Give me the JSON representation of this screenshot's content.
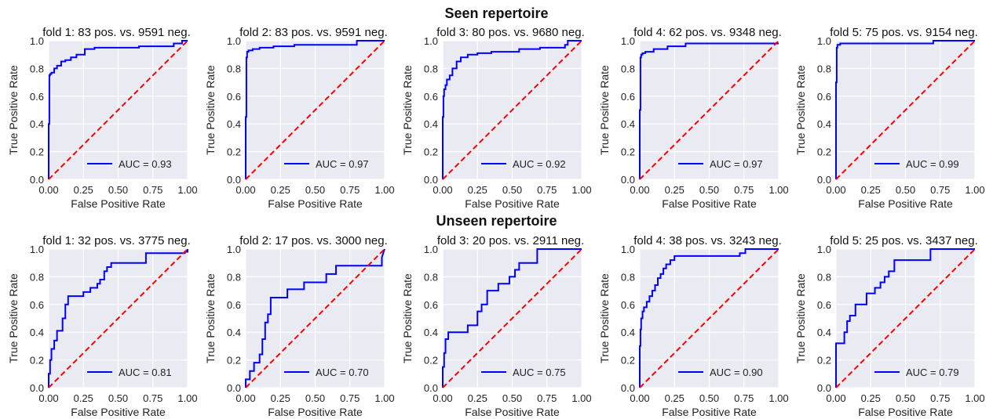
{
  "row_titles": [
    "Seen repertoire",
    "Unseen repertoire"
  ],
  "colors": {
    "roc": "#0000ff",
    "diagonal": "#ff0000",
    "panel_bg": "#eaeaf2",
    "grid": "#ffffff"
  },
  "chart_data": [
    {
      "type": "line",
      "row": 0,
      "title": "fold 1: 83 pos. vs. 9591 neg.",
      "xlabel": "False Positive Rate",
      "ylabel": "True Positive Rate",
      "xlim": [
        0,
        1
      ],
      "ylim": [
        0,
        1
      ],
      "xticks": [
        "0.00",
        "0.25",
        "0.50",
        "0.75",
        "1.00"
      ],
      "yticks": [
        "0.0",
        "0.2",
        "0.4",
        "0.6",
        "0.8",
        "1.0"
      ],
      "grid": true,
      "legend": "lower right",
      "series": [
        {
          "name": "AUC = 0.93",
          "x": [
            0,
            0,
            0.005,
            0.005,
            0.01,
            0.01,
            0.02,
            0.02,
            0.04,
            0.04,
            0.06,
            0.06,
            0.09,
            0.09,
            0.12,
            0.12,
            0.16,
            0.16,
            0.2,
            0.2,
            0.26,
            0.26,
            0.33,
            0.33,
            0.65,
            0.65,
            0.9,
            0.9,
            0.96,
            0.96,
            1
          ],
          "y": [
            0,
            0.4,
            0.4,
            0.75,
            0.75,
            0.76,
            0.76,
            0.77,
            0.77,
            0.8,
            0.8,
            0.82,
            0.82,
            0.85,
            0.85,
            0.86,
            0.86,
            0.88,
            0.88,
            0.9,
            0.9,
            0.94,
            0.94,
            0.95,
            0.95,
            0.96,
            0.96,
            0.98,
            0.98,
            1,
            1
          ]
        },
        {
          "x": [
            0,
            1
          ],
          "y": [
            0,
            1
          ],
          "style": "dashed"
        }
      ]
    },
    {
      "type": "line",
      "row": 0,
      "title": "fold 2: 83 pos. vs. 9591 neg.",
      "xlabel": "False Positive Rate",
      "ylabel": "True Positive Rate",
      "xlim": [
        0,
        1
      ],
      "ylim": [
        0,
        1
      ],
      "xticks": [
        "0.00",
        "0.25",
        "0.50",
        "0.75",
        "1.00"
      ],
      "yticks": [
        "0.0",
        "0.2",
        "0.4",
        "0.6",
        "0.8",
        "1.0"
      ],
      "grid": true,
      "legend": "lower right",
      "series": [
        {
          "name": "AUC = 0.97",
          "x": [
            0,
            0,
            0.005,
            0.005,
            0.01,
            0.01,
            0.02,
            0.02,
            0.05,
            0.05,
            0.1,
            0.1,
            0.2,
            0.2,
            0.35,
            0.35,
            0.8,
            0.8,
            1
          ],
          "y": [
            0,
            0.45,
            0.45,
            0.88,
            0.88,
            0.92,
            0.92,
            0.93,
            0.93,
            0.94,
            0.94,
            0.95,
            0.95,
            0.96,
            0.96,
            0.97,
            0.97,
            1,
            1
          ]
        },
        {
          "x": [
            0,
            1
          ],
          "y": [
            0,
            1
          ],
          "style": "dashed"
        }
      ]
    },
    {
      "type": "line",
      "row": 0,
      "title": "fold 3: 80 pos. vs. 9680 neg.",
      "xlabel": "False Positive Rate",
      "ylabel": "True Positive Rate",
      "xlim": [
        0,
        1
      ],
      "ylim": [
        0,
        1
      ],
      "xticks": [
        "0.00",
        "0.25",
        "0.50",
        "0.75",
        "1.00"
      ],
      "yticks": [
        "0.0",
        "0.2",
        "0.4",
        "0.6",
        "0.8",
        "1.0"
      ],
      "grid": true,
      "legend": "lower right",
      "series": [
        {
          "name": "AUC = 0.92",
          "x": [
            0,
            0,
            0.005,
            0.005,
            0.01,
            0.01,
            0.02,
            0.02,
            0.03,
            0.03,
            0.05,
            0.05,
            0.07,
            0.07,
            0.1,
            0.1,
            0.13,
            0.13,
            0.18,
            0.18,
            0.25,
            0.25,
            0.35,
            0.35,
            0.55,
            0.55,
            0.7,
            0.7,
            0.88,
            0.88,
            0.9,
            0.9,
            1
          ],
          "y": [
            0,
            0.45,
            0.45,
            0.6,
            0.6,
            0.65,
            0.65,
            0.68,
            0.68,
            0.72,
            0.72,
            0.75,
            0.75,
            0.8,
            0.8,
            0.85,
            0.85,
            0.88,
            0.88,
            0.9,
            0.9,
            0.91,
            0.91,
            0.92,
            0.92,
            0.94,
            0.94,
            0.95,
            0.95,
            0.97,
            0.97,
            1,
            1
          ]
        },
        {
          "x": [
            0,
            1
          ],
          "y": [
            0,
            1
          ],
          "style": "dashed"
        }
      ]
    },
    {
      "type": "line",
      "row": 0,
      "title": "fold 4: 62 pos. vs. 9348 neg.",
      "xlabel": "False Positive Rate",
      "ylabel": "True Positive Rate",
      "xlim": [
        0,
        1
      ],
      "ylim": [
        0,
        1
      ],
      "xticks": [
        "0.00",
        "0.25",
        "0.50",
        "0.75",
        "1.00"
      ],
      "yticks": [
        "0.0",
        "0.2",
        "0.4",
        "0.6",
        "0.8",
        "1.0"
      ],
      "grid": true,
      "legend": "lower right",
      "series": [
        {
          "name": "AUC = 0.97",
          "x": [
            0,
            0,
            0.005,
            0.005,
            0.01,
            0.01,
            0.02,
            0.02,
            0.04,
            0.04,
            0.1,
            0.1,
            0.2,
            0.2,
            0.33,
            0.33,
            1
          ],
          "y": [
            0,
            0.5,
            0.5,
            0.88,
            0.88,
            0.9,
            0.9,
            0.91,
            0.91,
            0.92,
            0.92,
            0.94,
            0.94,
            0.96,
            0.96,
            0.98,
            0.98
          ]
        },
        {
          "x": [
            0,
            1
          ],
          "y": [
            0,
            1
          ],
          "style": "dashed"
        }
      ]
    },
    {
      "type": "line",
      "row": 0,
      "title": "fold 5: 75 pos. vs. 9154 neg.",
      "xlabel": "False Positive Rate",
      "ylabel": "True Positive Rate",
      "xlim": [
        0,
        1
      ],
      "ylim": [
        0,
        1
      ],
      "xticks": [
        "0.00",
        "0.25",
        "0.50",
        "0.75",
        "1.00"
      ],
      "yticks": [
        "0.0",
        "0.2",
        "0.4",
        "0.6",
        "0.8",
        "1.0"
      ],
      "grid": true,
      "legend": "lower right",
      "series": [
        {
          "name": "AUC = 0.99",
          "x": [
            0,
            0,
            0.005,
            0.005,
            0.01,
            0.01,
            0.03,
            0.03,
            0.1,
            0.1,
            0.7,
            0.7,
            1
          ],
          "y": [
            0,
            0.7,
            0.7,
            0.95,
            0.95,
            0.97,
            0.97,
            0.98,
            0.98,
            0.98,
            0.98,
            1,
            1
          ]
        },
        {
          "x": [
            0,
            1
          ],
          "y": [
            0,
            1
          ],
          "style": "dashed"
        }
      ]
    },
    {
      "type": "line",
      "row": 1,
      "title": "fold 1: 32 pos. vs. 3775 neg.",
      "xlabel": "False Positive Rate",
      "ylabel": "True Positive Rate",
      "xlim": [
        0,
        1
      ],
      "ylim": [
        0,
        1
      ],
      "xticks": [
        "0.00",
        "0.25",
        "0.50",
        "0.75",
        "1.00"
      ],
      "yticks": [
        "0.0",
        "0.2",
        "0.4",
        "0.6",
        "0.8",
        "1.0"
      ],
      "grid": true,
      "legend": "lower right",
      "series": [
        {
          "name": "AUC = 0.81",
          "x": [
            0,
            0,
            0.01,
            0.01,
            0.02,
            0.02,
            0.04,
            0.04,
            0.06,
            0.06,
            0.1,
            0.1,
            0.12,
            0.12,
            0.14,
            0.14,
            0.2,
            0.2,
            0.25,
            0.25,
            0.3,
            0.3,
            0.35,
            0.35,
            0.37,
            0.37,
            0.4,
            0.4,
            0.42,
            0.42,
            0.45,
            0.45,
            0.5,
            0.5,
            0.7,
            0.7,
            0.98,
            0.98,
            1,
            1
          ],
          "y": [
            0,
            0.1,
            0.1,
            0.2,
            0.2,
            0.28,
            0.28,
            0.34,
            0.34,
            0.41,
            0.41,
            0.5,
            0.5,
            0.6,
            0.6,
            0.66,
            0.66,
            0.66,
            0.66,
            0.69,
            0.69,
            0.72,
            0.72,
            0.75,
            0.75,
            0.78,
            0.78,
            0.84,
            0.84,
            0.87,
            0.87,
            0.9,
            0.9,
            0.9,
            0.9,
            0.97,
            0.97,
            0.98,
            0.98,
            1
          ]
        },
        {
          "x": [
            0,
            1
          ],
          "y": [
            0,
            1
          ],
          "style": "dashed"
        }
      ]
    },
    {
      "type": "line",
      "row": 1,
      "title": "fold 2: 17 pos. vs. 3000 neg.",
      "xlabel": "False Positive Rate",
      "ylabel": "True Positive Rate",
      "xlim": [
        0,
        1
      ],
      "ylim": [
        0,
        1
      ],
      "xticks": [
        "0.00",
        "0.25",
        "0.50",
        "0.75",
        "1.00"
      ],
      "yticks": [
        "0.0",
        "0.2",
        "0.4",
        "0.6",
        "0.8",
        "1.0"
      ],
      "grid": true,
      "legend": "lower right",
      "series": [
        {
          "name": "AUC = 0.70",
          "x": [
            0,
            0,
            0.03,
            0.03,
            0.06,
            0.06,
            0.1,
            0.1,
            0.12,
            0.12,
            0.14,
            0.14,
            0.16,
            0.16,
            0.18,
            0.18,
            0.3,
            0.3,
            0.42,
            0.42,
            0.58,
            0.58,
            0.65,
            0.65,
            0.98,
            0.98,
            1
          ],
          "y": [
            0,
            0.06,
            0.06,
            0.12,
            0.12,
            0.18,
            0.18,
            0.24,
            0.24,
            0.35,
            0.35,
            0.47,
            0.47,
            0.53,
            0.53,
            0.65,
            0.65,
            0.71,
            0.71,
            0.76,
            0.76,
            0.82,
            0.82,
            0.88,
            0.88,
            0.94,
            1
          ]
        },
        {
          "x": [
            0,
            1
          ],
          "y": [
            0,
            1
          ],
          "style": "dashed"
        }
      ]
    },
    {
      "type": "line",
      "row": 1,
      "title": "fold 3: 20 pos. vs. 2911 neg.",
      "xlabel": "False Positive Rate",
      "ylabel": "True Positive Rate",
      "xlim": [
        0,
        1
      ],
      "ylim": [
        0,
        1
      ],
      "xticks": [
        "0.00",
        "0.25",
        "0.50",
        "0.75",
        "1.00"
      ],
      "yticks": [
        "0.0",
        "0.2",
        "0.4",
        "0.6",
        "0.8",
        "1.0"
      ],
      "grid": true,
      "legend": "lower right",
      "series": [
        {
          "name": "AUC = 0.75",
          "x": [
            0,
            0,
            0.01,
            0.01,
            0.02,
            0.02,
            0.04,
            0.04,
            0.06,
            0.06,
            0.18,
            0.18,
            0.25,
            0.25,
            0.28,
            0.28,
            0.32,
            0.32,
            0.4,
            0.4,
            0.48,
            0.48,
            0.52,
            0.52,
            0.55,
            0.55,
            0.68,
            0.68,
            1
          ],
          "y": [
            0,
            0.15,
            0.15,
            0.25,
            0.25,
            0.35,
            0.35,
            0.4,
            0.4,
            0.4,
            0.4,
            0.45,
            0.45,
            0.55,
            0.55,
            0.6,
            0.6,
            0.7,
            0.7,
            0.75,
            0.75,
            0.8,
            0.8,
            0.85,
            0.85,
            0.9,
            0.9,
            1,
            1
          ]
        },
        {
          "x": [
            0,
            1
          ],
          "y": [
            0,
            1
          ],
          "style": "dashed"
        }
      ]
    },
    {
      "type": "line",
      "row": 1,
      "title": "fold 4: 38 pos. vs. 3243 neg.",
      "xlabel": "False Positive Rate",
      "ylabel": "True Positive Rate",
      "xlim": [
        0,
        1
      ],
      "ylim": [
        0,
        1
      ],
      "xticks": [
        "0.00",
        "0.25",
        "0.50",
        "0.75",
        "1.00"
      ],
      "yticks": [
        "0.0",
        "0.2",
        "0.4",
        "0.6",
        "0.8",
        "1.0"
      ],
      "grid": true,
      "legend": "lower right",
      "series": [
        {
          "name": "AUC = 0.90",
          "x": [
            0,
            0,
            0.005,
            0.005,
            0.01,
            0.01,
            0.02,
            0.02,
            0.03,
            0.03,
            0.05,
            0.05,
            0.07,
            0.07,
            0.09,
            0.09,
            0.11,
            0.11,
            0.13,
            0.13,
            0.15,
            0.15,
            0.17,
            0.17,
            0.19,
            0.19,
            0.22,
            0.22,
            0.25,
            0.25,
            0.72,
            0.72,
            0.76,
            0.76,
            1
          ],
          "y": [
            0,
            0.3,
            0.3,
            0.42,
            0.42,
            0.5,
            0.5,
            0.55,
            0.55,
            0.58,
            0.58,
            0.62,
            0.62,
            0.66,
            0.66,
            0.7,
            0.7,
            0.74,
            0.74,
            0.79,
            0.79,
            0.82,
            0.82,
            0.86,
            0.86,
            0.89,
            0.89,
            0.92,
            0.92,
            0.95,
            0.95,
            0.97,
            0.97,
            1,
            1
          ]
        },
        {
          "x": [
            0,
            1
          ],
          "y": [
            0,
            1
          ],
          "style": "dashed"
        }
      ]
    },
    {
      "type": "line",
      "row": 1,
      "title": "fold 5: 25 pos. vs. 3437 neg.",
      "xlabel": "False Positive Rate",
      "ylabel": "True Positive Rate",
      "xlim": [
        0,
        1
      ],
      "ylim": [
        0,
        1
      ],
      "xticks": [
        "0.00",
        "0.25",
        "0.50",
        "0.75",
        "1.00"
      ],
      "yticks": [
        "0.0",
        "0.2",
        "0.4",
        "0.6",
        "0.8",
        "1.0"
      ],
      "grid": true,
      "legend": "lower right",
      "series": [
        {
          "name": "AUC = 0.79",
          "x": [
            0,
            0,
            0.06,
            0.06,
            0.08,
            0.08,
            0.1,
            0.1,
            0.14,
            0.14,
            0.22,
            0.22,
            0.28,
            0.28,
            0.32,
            0.32,
            0.35,
            0.35,
            0.38,
            0.38,
            0.42,
            0.42,
            0.68,
            0.68,
            1
          ],
          "y": [
            0,
            0.32,
            0.32,
            0.4,
            0.4,
            0.48,
            0.48,
            0.52,
            0.52,
            0.6,
            0.6,
            0.68,
            0.68,
            0.72,
            0.72,
            0.76,
            0.76,
            0.8,
            0.8,
            0.84,
            0.84,
            0.92,
            0.92,
            1,
            1
          ]
        },
        {
          "x": [
            0,
            1
          ],
          "y": [
            0,
            1
          ],
          "style": "dashed"
        }
      ]
    }
  ]
}
